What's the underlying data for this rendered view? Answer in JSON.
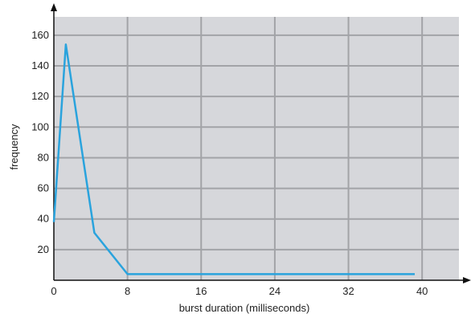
{
  "chart_data": {
    "type": "line",
    "title": "",
    "xlabel": "burst duration (milliseconds)",
    "ylabel": "frequency",
    "xlim": [
      0,
      44
    ],
    "ylim": [
      0,
      172
    ],
    "xticks": [
      0,
      8,
      16,
      24,
      32,
      40
    ],
    "yticks": [
      20,
      40,
      60,
      80,
      100,
      120,
      140,
      160
    ],
    "grid": true,
    "legend": "none",
    "series": [
      {
        "x": [
          0,
          1.3,
          4.4,
          8,
          39.2
        ],
        "y": [
          38,
          154,
          31,
          4,
          4
        ]
      }
    ],
    "colors": {
      "plot_background": "#d6d7db",
      "grid": "#a2a3a7",
      "line": "#2aa3dd",
      "axis": "#111111"
    }
  }
}
